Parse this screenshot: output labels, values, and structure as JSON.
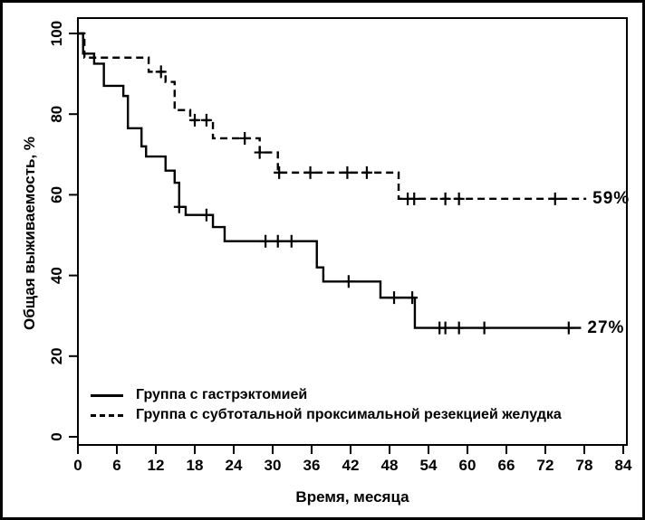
{
  "chart_data": {
    "type": "line",
    "subtype": "kaplan-meier-step-curves",
    "title": "",
    "xlabel": "Время, месяца",
    "ylabel": "Общая выживаемость, %",
    "xlim": [
      0,
      84
    ],
    "ylim": [
      0,
      100
    ],
    "x_ticks": [
      0,
      6,
      12,
      18,
      24,
      30,
      36,
      42,
      48,
      54,
      60,
      66,
      72,
      78,
      84
    ],
    "y_ticks": [
      0,
      20,
      40,
      60,
      80,
      100
    ],
    "grid": false,
    "ink_color": "#000000",
    "background_color": "#ffffff",
    "legend_position": "inside-bottom-left",
    "series": [
      {
        "name": "Группа с гастрэктомией",
        "line_style": "solid",
        "color": "#000000",
        "end_label": "27%",
        "end_x": 77.5,
        "steps": [
          [
            0,
            100
          ],
          [
            0.8,
            95
          ],
          [
            2.5,
            92.5
          ],
          [
            4,
            87
          ],
          [
            7,
            84.5
          ],
          [
            7.7,
            76.5
          ],
          [
            9.8,
            72
          ],
          [
            10.5,
            69.5
          ],
          [
            13.5,
            66
          ],
          [
            14.9,
            63
          ],
          [
            15.6,
            57
          ],
          [
            16.6,
            55
          ],
          [
            20.8,
            52
          ],
          [
            22.6,
            48.5
          ],
          [
            36.8,
            42
          ],
          [
            37.8,
            38.5
          ],
          [
            46.6,
            34.5
          ],
          [
            51.9,
            27
          ]
        ],
        "censor_marks": [
          [
            15.6,
            57
          ],
          [
            19.8,
            55
          ],
          [
            28.9,
            48.5
          ],
          [
            30.8,
            48.5
          ],
          [
            32.9,
            48.5
          ],
          [
            41.7,
            38.5
          ],
          [
            48.7,
            34.5
          ],
          [
            51.5,
            34.5
          ],
          [
            55.7,
            27
          ],
          [
            56.6,
            27
          ],
          [
            58.7,
            27
          ],
          [
            62.6,
            27
          ],
          [
            75.6,
            27
          ]
        ]
      },
      {
        "name": "Группа с субтотальной проксимальной резекцией желудка",
        "line_style": "dashed",
        "color": "#000000",
        "end_label": "59%",
        "end_x": 78.3,
        "steps": [
          [
            0,
            100
          ],
          [
            1,
            94
          ],
          [
            10.9,
            90.5
          ],
          [
            13.5,
            88
          ],
          [
            14.9,
            81
          ],
          [
            17.3,
            78.5
          ],
          [
            20.8,
            74
          ],
          [
            28,
            70.5
          ],
          [
            30.8,
            65.5
          ],
          [
            49.4,
            59
          ]
        ],
        "censor_marks": [
          [
            12.8,
            90.5
          ],
          [
            18,
            78.5
          ],
          [
            19.8,
            78.5
          ],
          [
            25.7,
            74
          ],
          [
            28,
            70.5
          ],
          [
            31,
            65.5
          ],
          [
            35.8,
            65.5
          ],
          [
            41.5,
            65.5
          ],
          [
            44.5,
            65.5
          ],
          [
            50.8,
            59
          ],
          [
            51.8,
            59
          ],
          [
            56.6,
            59
          ],
          [
            58.7,
            59
          ],
          [
            73.5,
            59
          ]
        ]
      }
    ]
  }
}
